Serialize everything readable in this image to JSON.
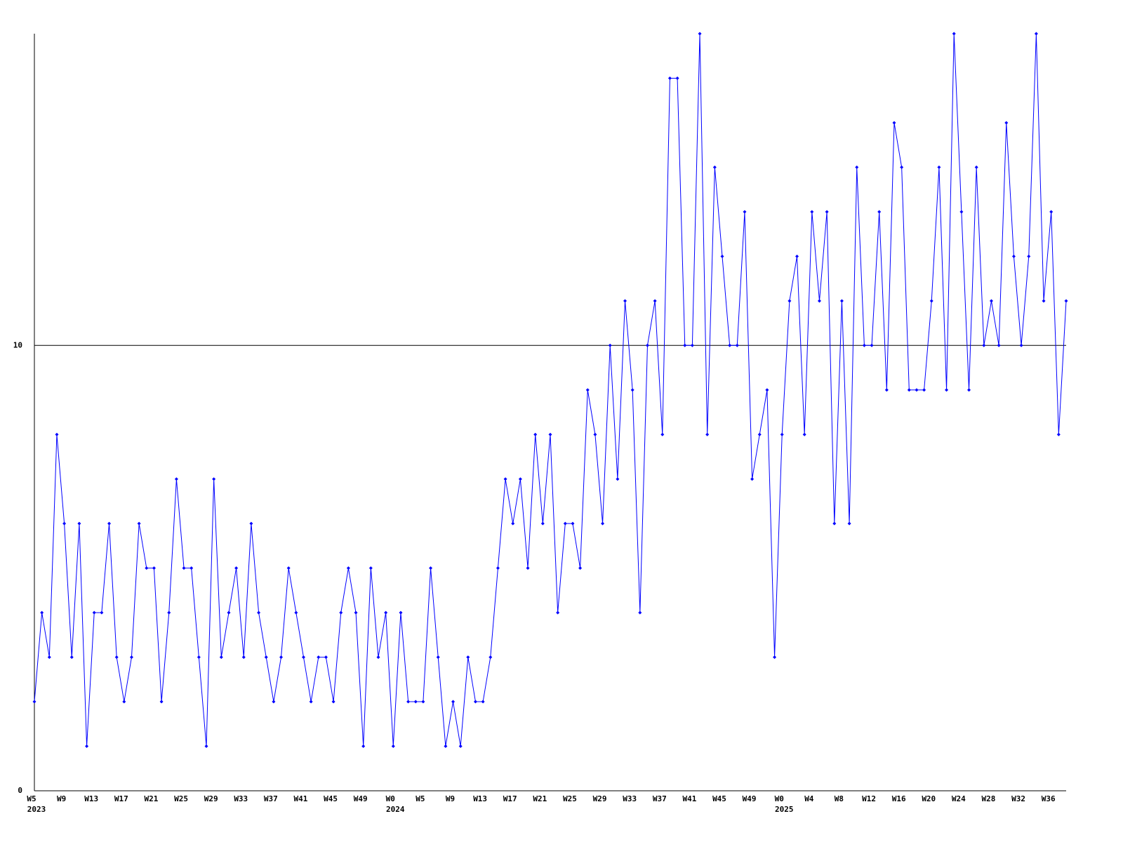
{
  "chart_data": {
    "type": "line",
    "categories": [
      "W5",
      null,
      null,
      null,
      "W9",
      null,
      null,
      null,
      "W13",
      null,
      null,
      null,
      "W17",
      null,
      null,
      null,
      "W21",
      null,
      null,
      null,
      "W25",
      null,
      null,
      null,
      "W29",
      null,
      null,
      null,
      "W33",
      null,
      null,
      null,
      "W37",
      null,
      null,
      null,
      "W41",
      null,
      null,
      null,
      "W45",
      null,
      null,
      null,
      "W49",
      null,
      null,
      null,
      "W0",
      null,
      null,
      null,
      "W5",
      null,
      null,
      null,
      "W9",
      null,
      null,
      null,
      "W13",
      null,
      null,
      null,
      "W17",
      null,
      null,
      null,
      "W21",
      null,
      null,
      null,
      "W25",
      null,
      null,
      null,
      "W29",
      null,
      null,
      null,
      "W33",
      null,
      null,
      null,
      "W37",
      null,
      null,
      null,
      "W41",
      null,
      null,
      null,
      "W45",
      null,
      null,
      null,
      "W49",
      null,
      null,
      null,
      "W0",
      null,
      null,
      null,
      "W4",
      null,
      null,
      null,
      "W8",
      null,
      null,
      null,
      "W12",
      null,
      null,
      null,
      "W16",
      null,
      null,
      null,
      "W20",
      null,
      null,
      null,
      "W24",
      null,
      null,
      null,
      "W28",
      null,
      null,
      null,
      "W32",
      null,
      null,
      null,
      "W36",
      null,
      null
    ],
    "year_labels": [
      "2023",
      null,
      null,
      null,
      null,
      null,
      null,
      null,
      null,
      null,
      null,
      null,
      null,
      null,
      null,
      null,
      null,
      null,
      null,
      null,
      null,
      null,
      null,
      null,
      null,
      null,
      null,
      null,
      null,
      null,
      null,
      null,
      null,
      null,
      null,
      null,
      null,
      null,
      null,
      null,
      null,
      null,
      null,
      null,
      null,
      null,
      null,
      null,
      "2024",
      null,
      null,
      null,
      null,
      null,
      null,
      null,
      null,
      null,
      null,
      null,
      null,
      null,
      null,
      null,
      null,
      null,
      null,
      null,
      null,
      null,
      null,
      null,
      null,
      null,
      null,
      null,
      null,
      null,
      null,
      null,
      null,
      null,
      null,
      null,
      null,
      null,
      null,
      null,
      null,
      null,
      null,
      null,
      null,
      null,
      null,
      null,
      null,
      null,
      null,
      null,
      "2025",
      null,
      null,
      null,
      null,
      null,
      null,
      null,
      null,
      null,
      null,
      null,
      null,
      null,
      null,
      null,
      null,
      null,
      null,
      null,
      null,
      null,
      null,
      null,
      null,
      null,
      null,
      null,
      null,
      null,
      null,
      null,
      null,
      null,
      null,
      null,
      null,
      null,
      null
    ],
    "values": [
      2,
      4,
      3,
      8,
      6,
      3,
      6,
      1,
      4,
      4,
      6,
      3,
      2,
      3,
      6,
      5,
      5,
      2,
      4,
      7,
      5,
      5,
      3,
      1,
      7,
      3,
      4,
      5,
      3,
      6,
      4,
      3,
      2,
      3,
      5,
      4,
      3,
      2,
      3,
      3,
      2,
      4,
      5,
      4,
      1,
      5,
      3,
      4,
      1,
      4,
      2,
      2,
      2,
      5,
      3,
      1,
      2,
      1,
      3,
      2,
      2,
      3,
      5,
      7,
      6,
      7,
      5,
      8,
      6,
      8,
      4,
      6,
      6,
      5,
      9,
      8,
      6,
      10,
      7,
      11,
      9,
      4,
      10,
      11,
      8,
      16,
      16,
      10,
      10,
      17,
      8,
      14,
      12,
      10,
      10,
      13,
      7,
      8,
      9,
      3,
      8,
      11,
      12,
      8,
      13,
      11,
      13,
      6,
      11,
      6,
      14,
      10,
      10,
      13,
      9,
      15,
      14,
      9,
      9,
      9,
      11,
      14,
      9,
      17,
      13,
      9,
      14,
      10,
      11,
      10,
      15,
      12,
      10,
      12,
      17,
      11,
      13,
      8,
      11
    ],
    "color": "#0000ff",
    "ylim": [
      0,
      17
    ],
    "yticks": [
      0,
      10
    ],
    "grid": true
  }
}
